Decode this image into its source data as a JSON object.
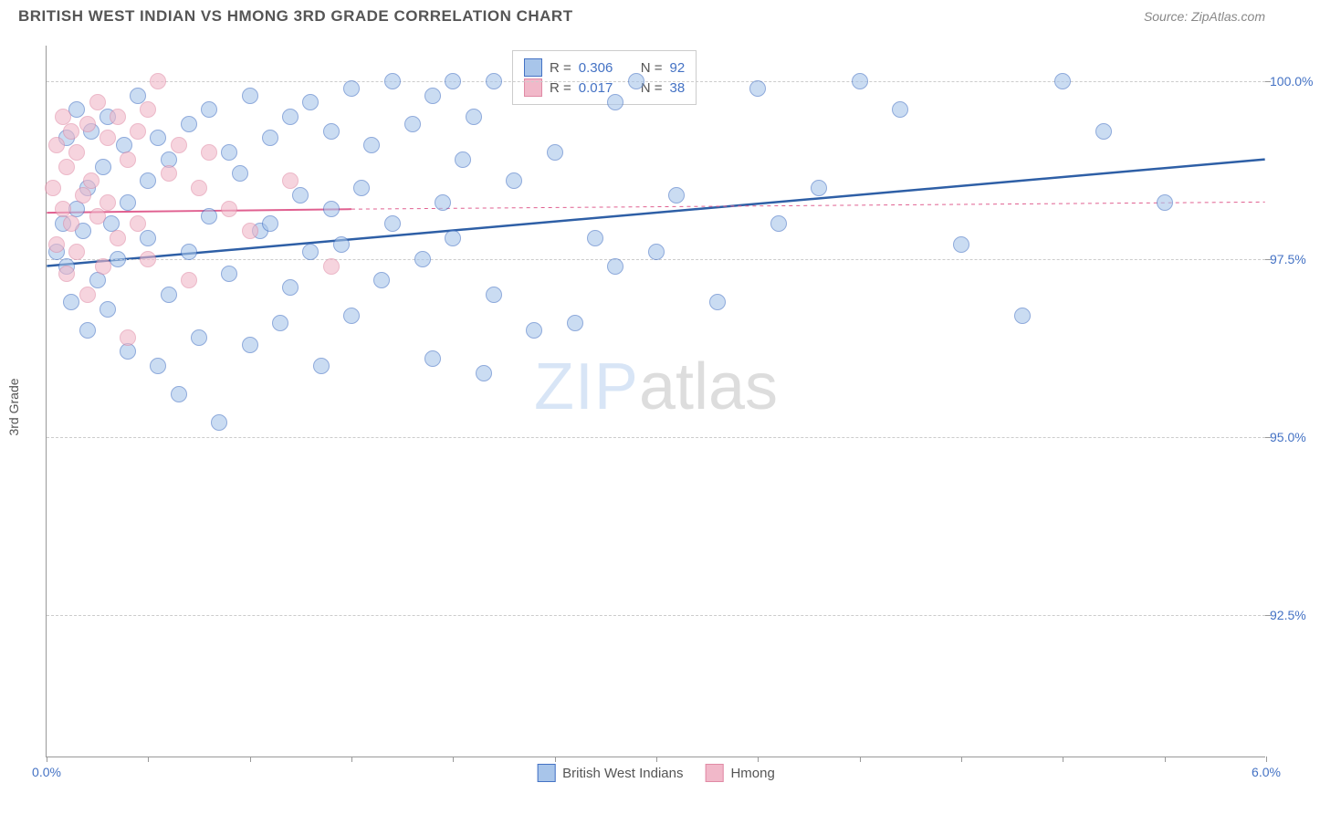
{
  "title": "BRITISH WEST INDIAN VS HMONG 3RD GRADE CORRELATION CHART",
  "source": "Source: ZipAtlas.com",
  "yaxis_label": "3rd Grade",
  "watermark": {
    "part1": "ZIP",
    "part2": "atlas"
  },
  "chart": {
    "type": "scatter",
    "xlim": [
      0.0,
      6.0
    ],
    "ylim": [
      90.5,
      100.5
    ],
    "xtick_label_left": "0.0%",
    "xtick_label_right": "6.0%",
    "xtick_positions": [
      0.0,
      0.5,
      1.0,
      1.5,
      2.0,
      2.5,
      3.0,
      3.5,
      4.0,
      4.5,
      5.0,
      5.5,
      6.0
    ],
    "y_gridlines": [
      {
        "value": 92.5,
        "label": "92.5%"
      },
      {
        "value": 95.0,
        "label": "95.0%"
      },
      {
        "value": 97.5,
        "label": "97.5%"
      },
      {
        "value": 100.0,
        "label": "100.0%"
      }
    ],
    "background_color": "#ffffff",
    "grid_color": "#cccccc",
    "marker_radius": 9,
    "marker_opacity": 0.6
  },
  "series": [
    {
      "name": "British West Indians",
      "R": "0.306",
      "N": "92",
      "fill_color": "#a8c5ea",
      "border_color": "#4472c4",
      "trend": {
        "x1": 0.0,
        "y1": 97.4,
        "x2": 6.0,
        "y2": 98.9,
        "color": "#2e5fa6",
        "width": 2.5,
        "dash": "none"
      },
      "trend_ext": null,
      "points": [
        [
          0.05,
          97.6
        ],
        [
          0.08,
          98.0
        ],
        [
          0.1,
          97.4
        ],
        [
          0.1,
          99.2
        ],
        [
          0.12,
          96.9
        ],
        [
          0.15,
          98.2
        ],
        [
          0.15,
          99.6
        ],
        [
          0.18,
          97.9
        ],
        [
          0.2,
          98.5
        ],
        [
          0.2,
          96.5
        ],
        [
          0.22,
          99.3
        ],
        [
          0.25,
          97.2
        ],
        [
          0.28,
          98.8
        ],
        [
          0.3,
          99.5
        ],
        [
          0.3,
          96.8
        ],
        [
          0.32,
          98.0
        ],
        [
          0.35,
          97.5
        ],
        [
          0.38,
          99.1
        ],
        [
          0.4,
          98.3
        ],
        [
          0.4,
          96.2
        ],
        [
          0.45,
          99.8
        ],
        [
          0.5,
          97.8
        ],
        [
          0.5,
          98.6
        ],
        [
          0.55,
          96.0
        ],
        [
          0.55,
          99.2
        ],
        [
          0.6,
          97.0
        ],
        [
          0.6,
          98.9
        ],
        [
          0.65,
          95.6
        ],
        [
          0.7,
          99.4
        ],
        [
          0.7,
          97.6
        ],
        [
          0.75,
          96.4
        ],
        [
          0.8,
          99.6
        ],
        [
          0.8,
          98.1
        ],
        [
          0.85,
          95.2
        ],
        [
          0.9,
          99.0
        ],
        [
          0.9,
          97.3
        ],
        [
          0.95,
          98.7
        ],
        [
          1.0,
          99.8
        ],
        [
          1.0,
          96.3
        ],
        [
          1.05,
          97.9
        ],
        [
          1.1,
          99.2
        ],
        [
          1.1,
          98.0
        ],
        [
          1.15,
          96.6
        ],
        [
          1.2,
          99.5
        ],
        [
          1.2,
          97.1
        ],
        [
          1.25,
          98.4
        ],
        [
          1.3,
          99.7
        ],
        [
          1.3,
          97.6
        ],
        [
          1.35,
          96.0
        ],
        [
          1.4,
          98.2
        ],
        [
          1.4,
          99.3
        ],
        [
          1.45,
          97.7
        ],
        [
          1.5,
          99.9
        ],
        [
          1.5,
          96.7
        ],
        [
          1.55,
          98.5
        ],
        [
          1.6,
          99.1
        ],
        [
          1.65,
          97.2
        ],
        [
          1.7,
          100.0
        ],
        [
          1.7,
          98.0
        ],
        [
          1.8,
          99.4
        ],
        [
          1.85,
          97.5
        ],
        [
          1.9,
          99.8
        ],
        [
          1.9,
          96.1
        ],
        [
          1.95,
          98.3
        ],
        [
          2.0,
          100.0
        ],
        [
          2.0,
          97.8
        ],
        [
          2.05,
          98.9
        ],
        [
          2.1,
          99.5
        ],
        [
          2.15,
          95.9
        ],
        [
          2.2,
          100.0
        ],
        [
          2.2,
          97.0
        ],
        [
          2.3,
          98.6
        ],
        [
          2.4,
          96.5
        ],
        [
          2.5,
          99.0
        ],
        [
          2.6,
          96.6
        ],
        [
          2.7,
          97.8
        ],
        [
          2.8,
          99.7
        ],
        [
          2.8,
          97.4
        ],
        [
          2.9,
          100.0
        ],
        [
          3.0,
          97.6
        ],
        [
          3.1,
          98.4
        ],
        [
          3.3,
          96.9
        ],
        [
          3.5,
          99.9
        ],
        [
          3.6,
          98.0
        ],
        [
          3.8,
          98.5
        ],
        [
          4.0,
          100.0
        ],
        [
          4.2,
          99.6
        ],
        [
          4.5,
          97.7
        ],
        [
          4.8,
          96.7
        ],
        [
          5.0,
          100.0
        ],
        [
          5.2,
          99.3
        ],
        [
          5.5,
          98.3
        ]
      ]
    },
    {
      "name": "Hmong",
      "R": "0.017",
      "N": "38",
      "fill_color": "#f1b8c9",
      "border_color": "#e08aa5",
      "trend": {
        "x1": 0.0,
        "y1": 98.15,
        "x2": 1.5,
        "y2": 98.2,
        "color": "#e06090",
        "width": 2,
        "dash": "none"
      },
      "trend_ext": {
        "x1": 1.5,
        "y1": 98.2,
        "x2": 6.0,
        "y2": 98.3,
        "color": "#e06090",
        "width": 1,
        "dash": "4,4"
      },
      "points": [
        [
          0.03,
          98.5
        ],
        [
          0.05,
          99.1
        ],
        [
          0.05,
          97.7
        ],
        [
          0.08,
          98.2
        ],
        [
          0.08,
          99.5
        ],
        [
          0.1,
          97.3
        ],
        [
          0.1,
          98.8
        ],
        [
          0.12,
          99.3
        ],
        [
          0.12,
          98.0
        ],
        [
          0.15,
          97.6
        ],
        [
          0.15,
          99.0
        ],
        [
          0.18,
          98.4
        ],
        [
          0.2,
          99.4
        ],
        [
          0.2,
          97.0
        ],
        [
          0.22,
          98.6
        ],
        [
          0.25,
          99.7
        ],
        [
          0.25,
          98.1
        ],
        [
          0.28,
          97.4
        ],
        [
          0.3,
          99.2
        ],
        [
          0.3,
          98.3
        ],
        [
          0.35,
          99.5
        ],
        [
          0.35,
          97.8
        ],
        [
          0.4,
          98.9
        ],
        [
          0.4,
          96.4
        ],
        [
          0.45,
          99.3
        ],
        [
          0.45,
          98.0
        ],
        [
          0.5,
          99.6
        ],
        [
          0.5,
          97.5
        ],
        [
          0.55,
          100.0
        ],
        [
          0.6,
          98.7
        ],
        [
          0.65,
          99.1
        ],
        [
          0.7,
          97.2
        ],
        [
          0.75,
          98.5
        ],
        [
          0.8,
          99.0
        ],
        [
          0.9,
          98.2
        ],
        [
          1.0,
          97.9
        ],
        [
          1.2,
          98.6
        ],
        [
          1.4,
          97.4
        ]
      ]
    }
  ],
  "legend_bottom": [
    {
      "label": "British West Indians",
      "fill": "#a8c5ea",
      "border": "#4472c4"
    },
    {
      "label": "Hmong",
      "fill": "#f1b8c9",
      "border": "#e08aa5"
    }
  ]
}
